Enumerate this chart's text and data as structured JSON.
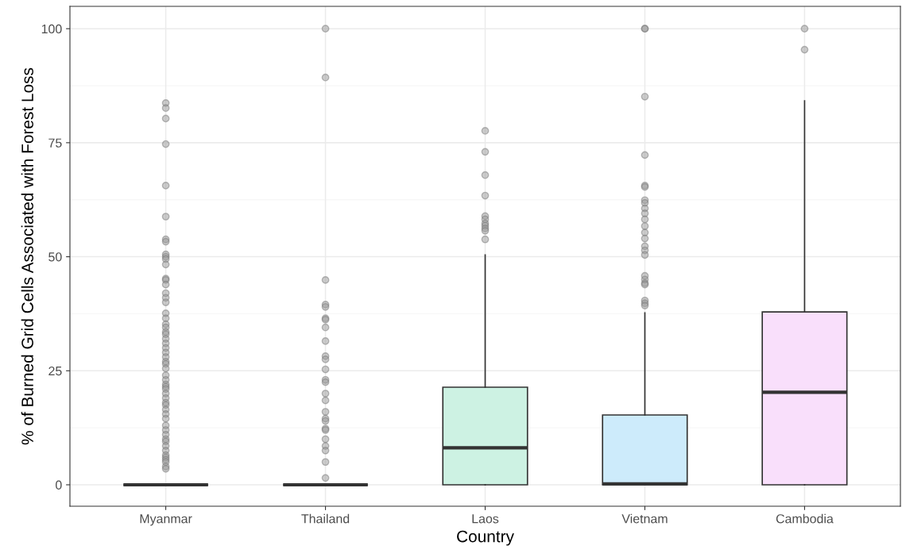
{
  "chart_data": {
    "type": "box",
    "xlabel": "Country",
    "ylabel": "% of Burned Grid Cells Associated with Forest Loss",
    "categories": [
      "Myanmar",
      "Thailand",
      "Laos",
      "Vietnam",
      "Cambodia"
    ],
    "colors": [
      null,
      null,
      "#cdf2e3",
      "#cdebfb",
      "#f9dffb"
    ],
    "boxes": [
      {
        "low": 0,
        "q1": 0,
        "median": 0,
        "q3": 0,
        "high": 0,
        "outliers": [
          83.7,
          82.6,
          80.3,
          74.7,
          65.6,
          58.8,
          53.8,
          53.3,
          50.5,
          50,
          49.5,
          48.3,
          45.2,
          44.9,
          43.9,
          42,
          41,
          40,
          37.6,
          36.5,
          35.2,
          34.5,
          33.5,
          33,
          32,
          31,
          30,
          29,
          28,
          27,
          26.5,
          25.5,
          24,
          23,
          22,
          21.5,
          21,
          20,
          19,
          18,
          17.5,
          16.5,
          15.5,
          14.5,
          13,
          12,
          11,
          10,
          9.5,
          8.5,
          7.5,
          6.5,
          6,
          5.5,
          5,
          4,
          3.5
        ]
      },
      {
        "low": 0,
        "q1": 0,
        "median": 0,
        "q3": 0,
        "high": 0,
        "outliers": [
          100,
          89.3,
          44.9,
          39.5,
          39,
          36.5,
          36.2,
          34.5,
          31.5,
          28.2,
          27.5,
          25.3,
          23,
          22.5,
          20,
          18.5,
          16,
          14.5,
          14,
          12.3,
          12,
          10,
          8.5,
          7.5,
          5,
          1.5
        ]
      },
      {
        "low": 0,
        "q1": 0,
        "median": 8.1,
        "q3": 21.4,
        "high": 50.4,
        "outliers": [
          77.6,
          73,
          67.9,
          63.4,
          58.9,
          58.2,
          57.3,
          56.8,
          56.2,
          55.7,
          53.8
        ]
      },
      {
        "low": 0,
        "q1": 0,
        "median": 0.2,
        "q3": 15.3,
        "high": 37.7,
        "outliers": [
          100,
          100,
          85.1,
          72.3,
          65.6,
          65.3,
          62.4,
          61.8,
          60.6,
          59.5,
          58.2,
          56.7,
          55.3,
          54,
          52.3,
          51.4,
          50.4,
          45.8,
          45,
          44.2,
          43.9,
          40.4,
          39.8,
          39.3
        ]
      },
      {
        "low": 0,
        "q1": 0,
        "median": 20.3,
        "q3": 37.9,
        "high": 84.2,
        "outliers": [
          100,
          95.4
        ]
      }
    ],
    "ylim": [
      -4.7,
      104.9
    ],
    "yticks": [
      0,
      25,
      50,
      75,
      100
    ],
    "grid": true
  }
}
